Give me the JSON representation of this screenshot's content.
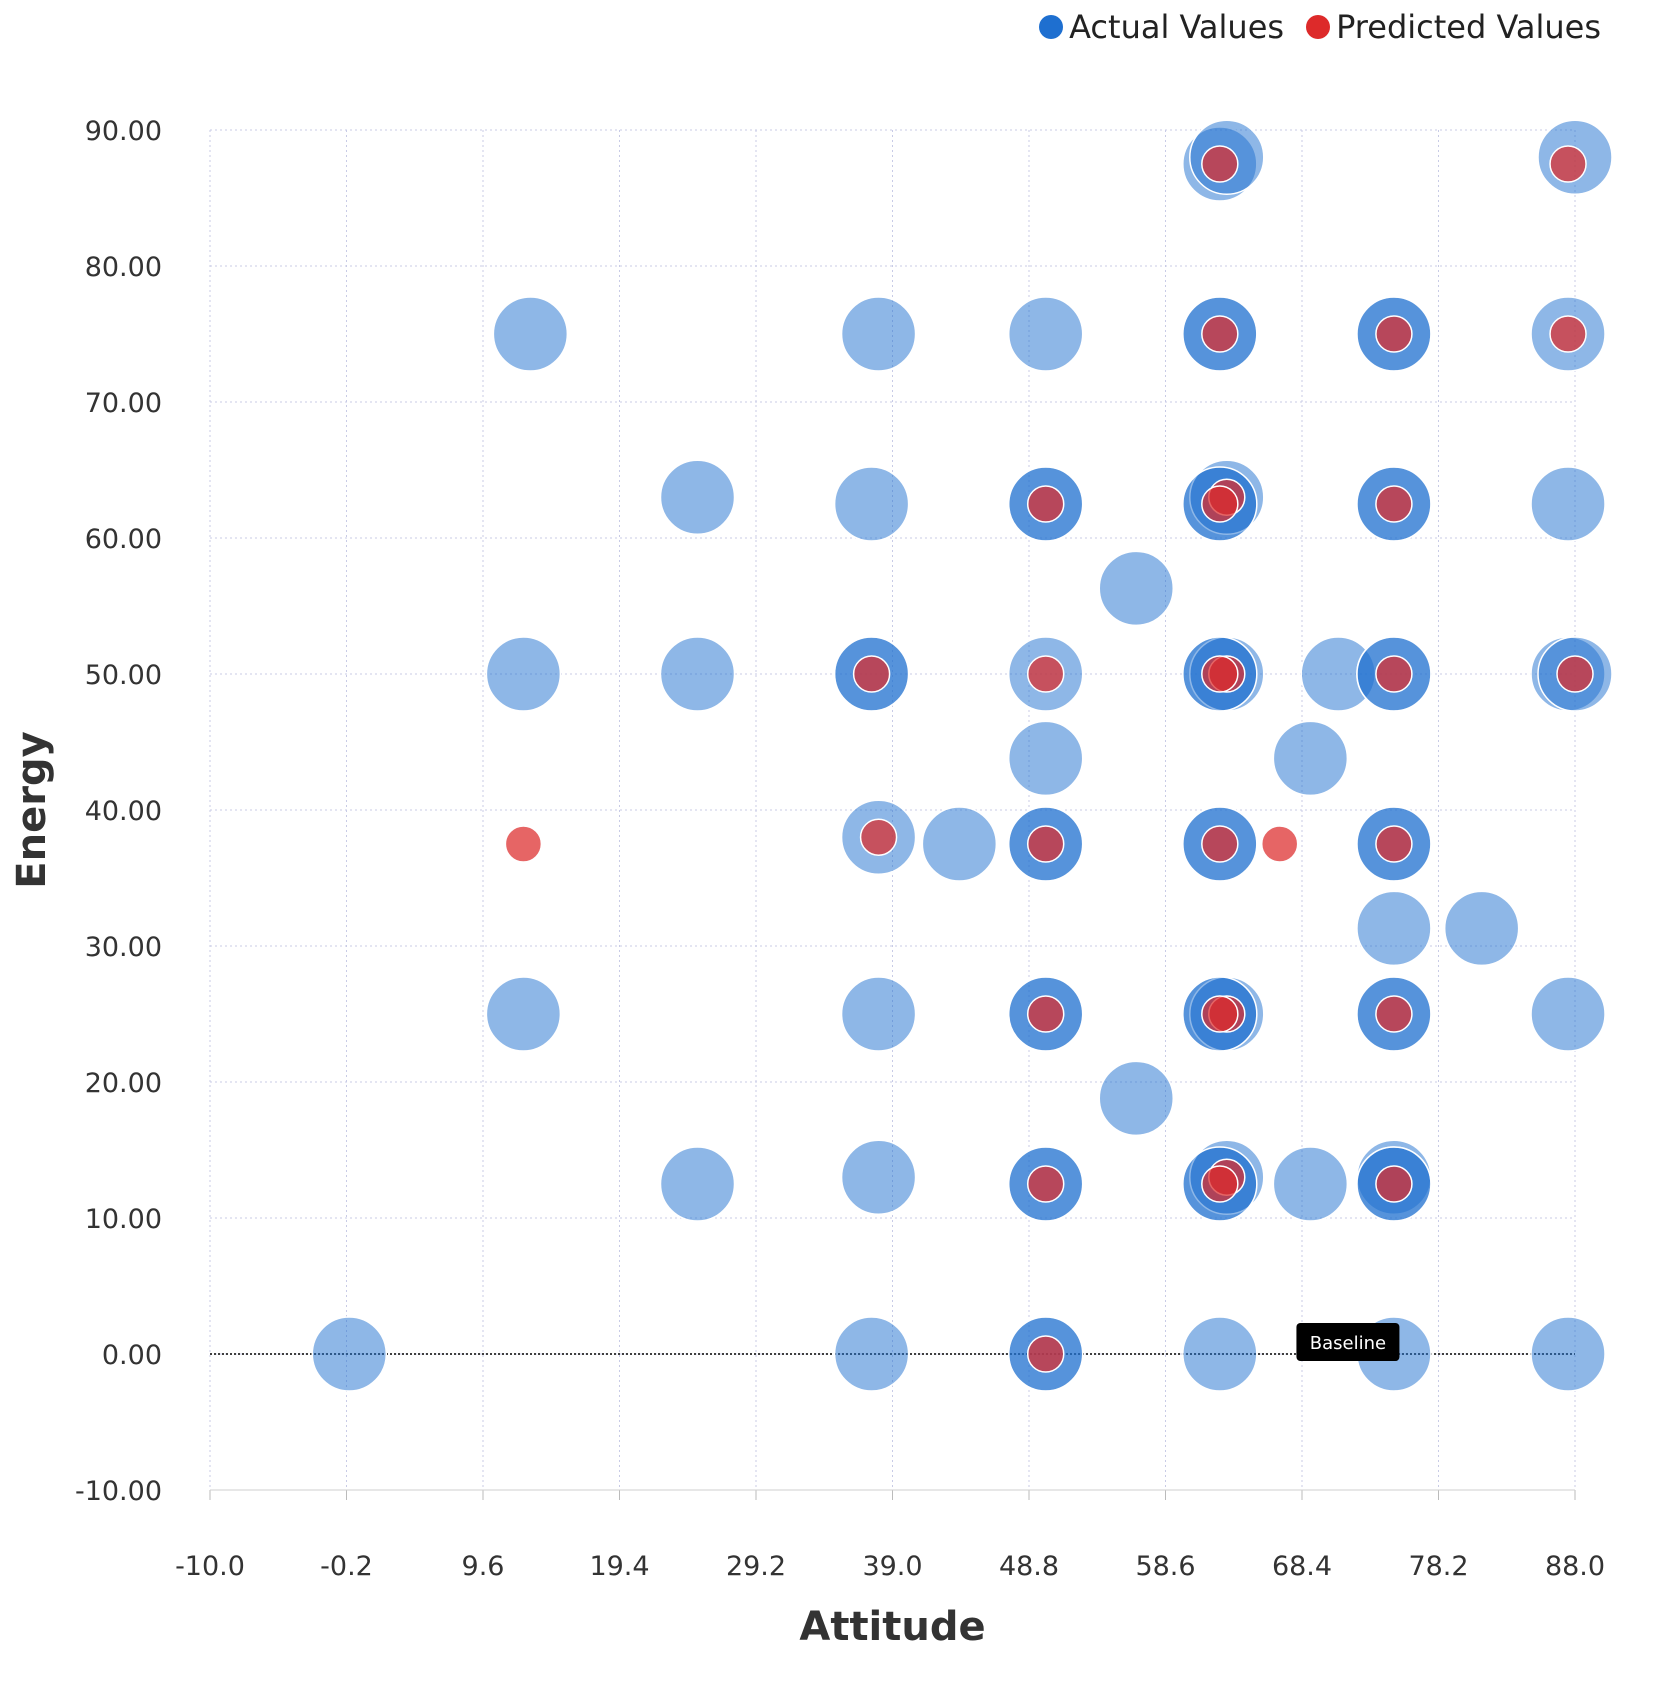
{
  "legend": {
    "actual_label": "Actual Values",
    "predicted_label": "Predicted Values",
    "actual_color": "#1e6fd0",
    "predicted_color": "#dd2a2a"
  },
  "chart_data": {
    "type": "scatter",
    "xlabel": "Attitude",
    "ylabel": "Energy",
    "xlim": [
      -10.0,
      88.0
    ],
    "ylim": [
      -10.0,
      90.0
    ],
    "x_ticks": [
      "-10.0",
      "-0.2",
      "9.6",
      "19.4",
      "29.2",
      "39.0",
      "48.8",
      "58.6",
      "68.4",
      "78.2",
      "88.0"
    ],
    "y_ticks": [
      "-10.00",
      "0.00",
      "10.00",
      "20.00",
      "30.00",
      "40.00",
      "50.00",
      "60.00",
      "70.00",
      "80.00",
      "90.00"
    ],
    "baseline": {
      "y": 0,
      "label": "Baseline"
    },
    "series": [
      {
        "name": "Actual Values",
        "color": "#1e6fd0",
        "points": [
          {
            "x": 62.5,
            "y": 87.5
          },
          {
            "x": 63.0,
            "y": 88.0
          },
          {
            "x": 88.0,
            "y": 88.0
          },
          {
            "x": 13.0,
            "y": 75.0
          },
          {
            "x": 38.0,
            "y": 75.0
          },
          {
            "x": 50.0,
            "y": 75.0
          },
          {
            "x": 62.5,
            "y": 75.0
          },
          {
            "x": 62.5,
            "y": 75.0
          },
          {
            "x": 75.0,
            "y": 75.0
          },
          {
            "x": 75.0,
            "y": 75.0
          },
          {
            "x": 87.5,
            "y": 75.0
          },
          {
            "x": 25.0,
            "y": 63.0
          },
          {
            "x": 37.5,
            "y": 62.5
          },
          {
            "x": 50.0,
            "y": 62.5
          },
          {
            "x": 50.0,
            "y": 62.5
          },
          {
            "x": 62.5,
            "y": 62.5
          },
          {
            "x": 63.0,
            "y": 63.0
          },
          {
            "x": 62.5,
            "y": 62.5
          },
          {
            "x": 75.0,
            "y": 62.5
          },
          {
            "x": 75.0,
            "y": 62.5
          },
          {
            "x": 87.5,
            "y": 62.5
          },
          {
            "x": 56.5,
            "y": 56.3
          },
          {
            "x": 12.5,
            "y": 50.0
          },
          {
            "x": 25.0,
            "y": 50.0
          },
          {
            "x": 37.5,
            "y": 50.0
          },
          {
            "x": 37.5,
            "y": 50.0
          },
          {
            "x": 50.0,
            "y": 50.0
          },
          {
            "x": 62.5,
            "y": 50.0
          },
          {
            "x": 63.0,
            "y": 50.0
          },
          {
            "x": 62.5,
            "y": 50.0
          },
          {
            "x": 71.0,
            "y": 50.0
          },
          {
            "x": 75.0,
            "y": 50.0
          },
          {
            "x": 75.0,
            "y": 50.0
          },
          {
            "x": 87.5,
            "y": 50.0
          },
          {
            "x": 88.0,
            "y": 50.0
          },
          {
            "x": 50.0,
            "y": 43.8
          },
          {
            "x": 69.0,
            "y": 43.8
          },
          {
            "x": 38.0,
            "y": 38.0
          },
          {
            "x": 43.8,
            "y": 37.5
          },
          {
            "x": 50.0,
            "y": 37.5
          },
          {
            "x": 50.0,
            "y": 37.5
          },
          {
            "x": 62.5,
            "y": 37.5
          },
          {
            "x": 62.5,
            "y": 37.5
          },
          {
            "x": 75.0,
            "y": 37.5
          },
          {
            "x": 75.0,
            "y": 37.5
          },
          {
            "x": 75.0,
            "y": 31.3
          },
          {
            "x": 81.3,
            "y": 31.3
          },
          {
            "x": 12.5,
            "y": 25.0
          },
          {
            "x": 38.0,
            "y": 25.0
          },
          {
            "x": 50.0,
            "y": 25.0
          },
          {
            "x": 50.0,
            "y": 25.0
          },
          {
            "x": 62.5,
            "y": 25.0
          },
          {
            "x": 63.0,
            "y": 25.0
          },
          {
            "x": 62.5,
            "y": 25.0
          },
          {
            "x": 75.0,
            "y": 25.0
          },
          {
            "x": 75.0,
            "y": 25.0
          },
          {
            "x": 87.5,
            "y": 25.0
          },
          {
            "x": 56.5,
            "y": 18.8
          },
          {
            "x": 25.0,
            "y": 12.5
          },
          {
            "x": 38.0,
            "y": 13.0
          },
          {
            "x": 50.0,
            "y": 12.5
          },
          {
            "x": 50.0,
            "y": 12.5
          },
          {
            "x": 62.5,
            "y": 12.5
          },
          {
            "x": 63.0,
            "y": 13.0
          },
          {
            "x": 62.5,
            "y": 12.5
          },
          {
            "x": 69.0,
            "y": 12.5
          },
          {
            "x": 75.0,
            "y": 13.0
          },
          {
            "x": 75.0,
            "y": 12.5
          },
          {
            "x": 75.0,
            "y": 12.5
          },
          {
            "x": 0.0,
            "y": 0.0
          },
          {
            "x": 37.5,
            "y": 0.0
          },
          {
            "x": 50.0,
            "y": 0.0
          },
          {
            "x": 50.0,
            "y": 0.0
          },
          {
            "x": 62.5,
            "y": 0.0
          },
          {
            "x": 75.0,
            "y": 0.0
          },
          {
            "x": 87.5,
            "y": 0.0
          }
        ]
      },
      {
        "name": "Predicted Values",
        "color": "#dd2a2a",
        "points": [
          {
            "x": 62.5,
            "y": 87.5
          },
          {
            "x": 87.5,
            "y": 87.5
          },
          {
            "x": 62.5,
            "y": 75.0
          },
          {
            "x": 75.0,
            "y": 75.0
          },
          {
            "x": 87.5,
            "y": 75.0
          },
          {
            "x": 50.0,
            "y": 62.5
          },
          {
            "x": 63.0,
            "y": 63.0
          },
          {
            "x": 62.5,
            "y": 62.5
          },
          {
            "x": 75.0,
            "y": 62.5
          },
          {
            "x": 37.5,
            "y": 50.0
          },
          {
            "x": 50.0,
            "y": 50.0
          },
          {
            "x": 63.0,
            "y": 50.0
          },
          {
            "x": 62.5,
            "y": 50.0
          },
          {
            "x": 75.0,
            "y": 50.0
          },
          {
            "x": 88.0,
            "y": 50.0
          },
          {
            "x": 12.5,
            "y": 37.5
          },
          {
            "x": 38.0,
            "y": 38.0
          },
          {
            "x": 50.0,
            "y": 37.5
          },
          {
            "x": 62.5,
            "y": 37.5
          },
          {
            "x": 66.8,
            "y": 37.5
          },
          {
            "x": 75.0,
            "y": 37.5
          },
          {
            "x": 50.0,
            "y": 25.0
          },
          {
            "x": 63.0,
            "y": 25.0
          },
          {
            "x": 62.5,
            "y": 25.0
          },
          {
            "x": 75.0,
            "y": 25.0
          },
          {
            "x": 50.0,
            "y": 12.5
          },
          {
            "x": 63.0,
            "y": 13.0
          },
          {
            "x": 62.5,
            "y": 12.5
          },
          {
            "x": 75.0,
            "y": 12.5
          },
          {
            "x": 50.0,
            "y": 0.0
          }
        ]
      }
    ]
  }
}
